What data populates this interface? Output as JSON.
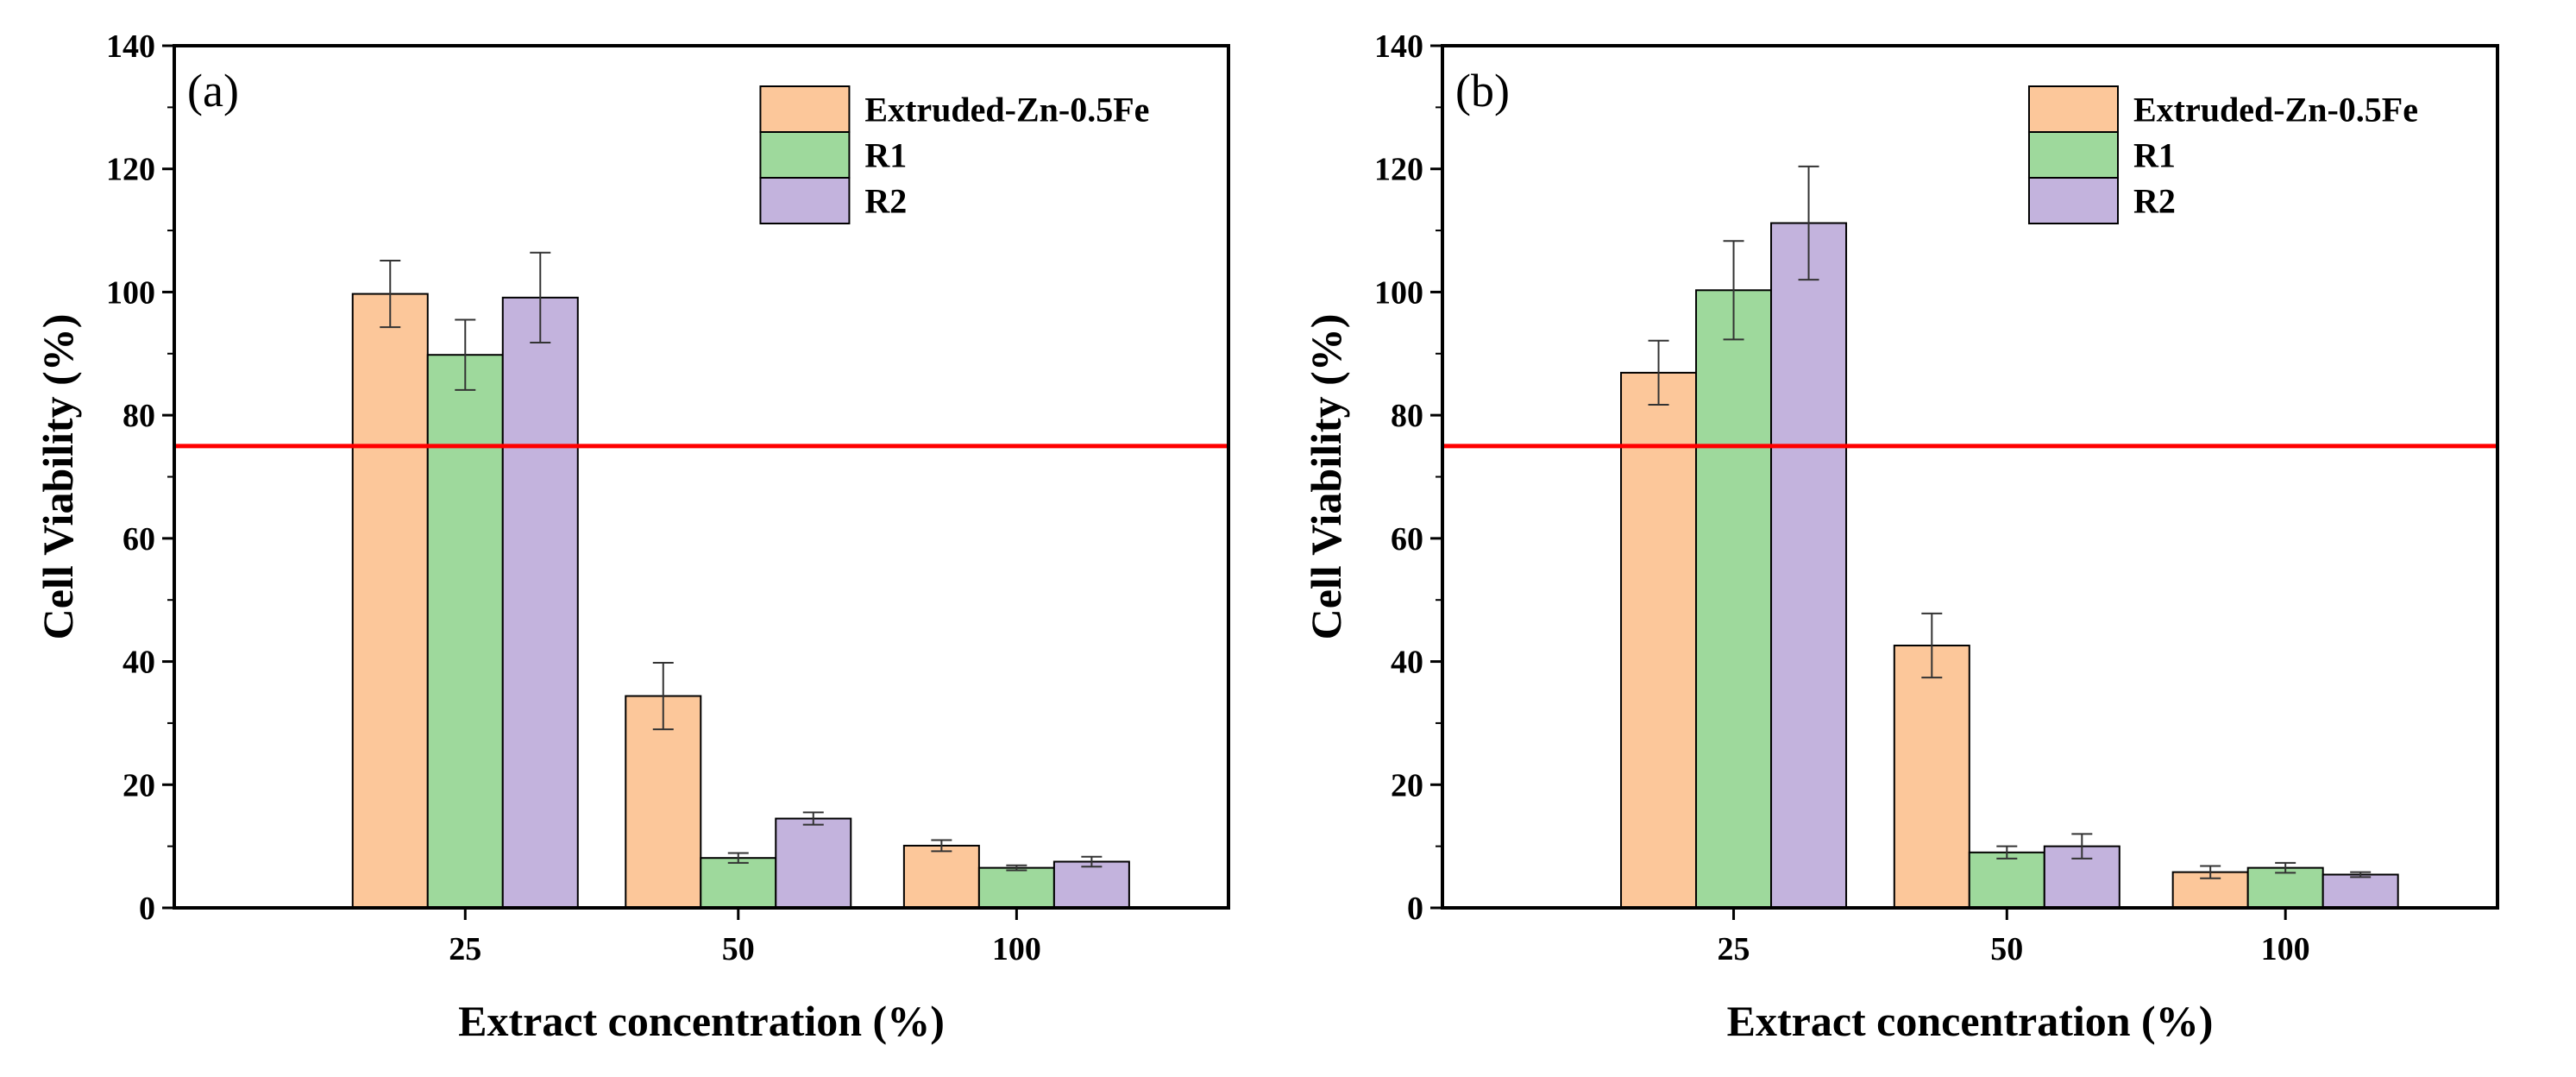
{
  "figure": {
    "colors": {
      "Extruded-Zn-0.5Fe": "#FCC79A",
      "R1": "#9ED99C",
      "R2": "#C3B3DD",
      "threshold": "#FF0000",
      "axis": "#000000"
    }
  },
  "chart_data": [
    {
      "type": "bar",
      "panel_label": "(a)",
      "xlabel": "Extract concentration (%)",
      "ylabel": "Cell Viability (%)",
      "ylim": [
        0,
        140
      ],
      "yticks": [
        "0",
        "20",
        "40",
        "60",
        "80",
        "100",
        "120",
        "140"
      ],
      "categories": [
        "25",
        "50",
        "100"
      ],
      "reference_line": 75,
      "legend_position": "top-right",
      "series": [
        {
          "name": "Extruded-Zn-0.5Fe",
          "values": [
            99.7,
            34.4,
            10.1
          ],
          "errors": [
            5.4,
            5.4,
            0.9
          ]
        },
        {
          "name": "R1",
          "values": [
            89.8,
            8.1,
            6.5
          ],
          "errors": [
            5.7,
            0.8,
            0.4
          ]
        },
        {
          "name": "R2",
          "values": [
            99.1,
            14.5,
            7.5
          ],
          "errors": [
            7.3,
            1.0,
            0.8
          ]
        }
      ]
    },
    {
      "type": "bar",
      "panel_label": "(b)",
      "xlabel": "Extract concentration (%)",
      "ylabel": "Cell Viability (%)",
      "ylim": [
        0,
        140
      ],
      "yticks": [
        "0",
        "20",
        "40",
        "60",
        "80",
        "100",
        "120",
        "140"
      ],
      "categories": [
        "25",
        "50",
        "100"
      ],
      "reference_line": 75,
      "legend_position": "top-right",
      "series": [
        {
          "name": "Extruded-Zn-0.5Fe",
          "values": [
            86.9,
            42.6,
            5.8
          ],
          "errors": [
            5.2,
            5.2,
            1.0
          ]
        },
        {
          "name": "R1",
          "values": [
            100.3,
            9.0,
            6.5
          ],
          "errors": [
            8.0,
            1.0,
            0.8
          ]
        },
        {
          "name": "R2",
          "values": [
            111.2,
            10.0,
            5.4
          ],
          "errors": [
            9.2,
            2.0,
            0.4
          ]
        }
      ]
    }
  ]
}
